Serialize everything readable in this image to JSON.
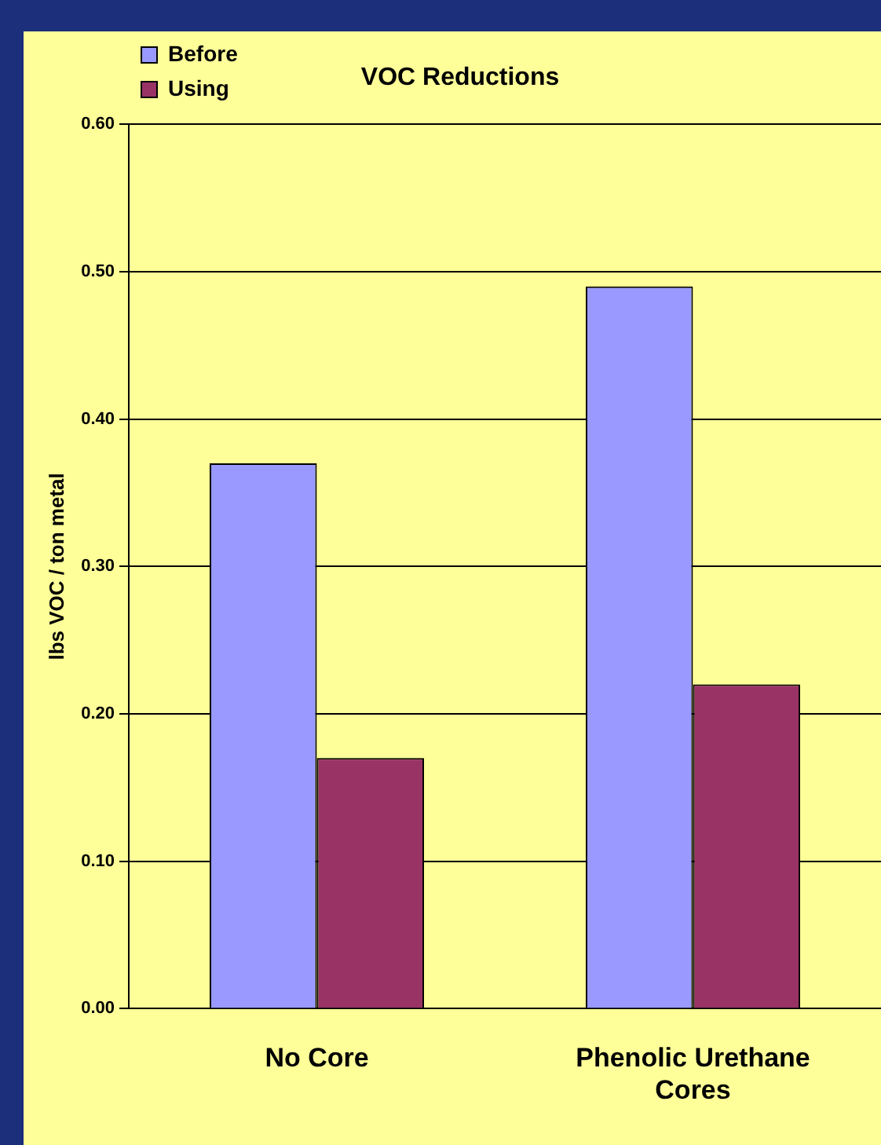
{
  "chart_data": {
    "type": "bar",
    "title": "VOC Reductions",
    "ylabel": "lbs VOC / ton metal",
    "categories": [
      "No Core",
      "Phenolic Urethane Cores"
    ],
    "series": [
      {
        "name": "Before",
        "color": "#9999ff",
        "values": [
          0.37,
          0.49
        ]
      },
      {
        "name": "Using",
        "color": "#993366",
        "values": [
          0.17,
          0.22
        ]
      }
    ],
    "ylim": [
      0,
      0.6
    ],
    "yticks": [
      {
        "value": 0,
        "label": "0.00"
      },
      {
        "value": 0.1,
        "label": "0.10"
      },
      {
        "value": 0.2,
        "label": "0.20"
      },
      {
        "value": 0.3,
        "label": "0.30"
      },
      {
        "value": 0.4,
        "label": "0.40"
      },
      {
        "value": 0.5,
        "label": "0.50"
      },
      {
        "value": 0.6,
        "label": "0.60"
      }
    ],
    "grid": "y",
    "legend": "top left"
  }
}
